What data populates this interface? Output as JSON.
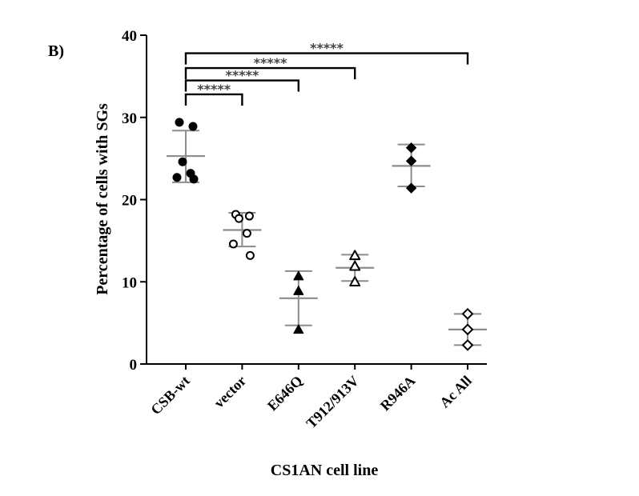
{
  "panel_label": "B)",
  "chart_data": {
    "type": "scatter",
    "title": "",
    "xlabel": "CS1AN cell line",
    "ylabel": "Percentage of cells with SGs",
    "ylim": [
      0,
      40
    ],
    "yticks": [
      0,
      10,
      20,
      30,
      40
    ],
    "categories": [
      "CSB-wt",
      "vector",
      "E646Q",
      "T912/913V",
      "R946A",
      "Ac All"
    ],
    "groups": [
      {
        "name": "CSB-wt",
        "marker": "circle-filled",
        "points": [
          29.4,
          28.9,
          24.6,
          23.2,
          22.7,
          22.5
        ],
        "mean": 25.3,
        "sd_low": 22.1,
        "sd_high": 28.4
      },
      {
        "name": "vector",
        "marker": "circle-open",
        "points": [
          18.2,
          18.0,
          17.7,
          15.9,
          14.6,
          13.2
        ],
        "mean": 16.3,
        "sd_low": 14.3,
        "sd_high": 18.4
      },
      {
        "name": "E646Q",
        "marker": "triangle-filled",
        "points": [
          10.7,
          8.9,
          4.2
        ],
        "mean": 8.0,
        "sd_low": 4.7,
        "sd_high": 11.3
      },
      {
        "name": "T912/913V",
        "marker": "triangle-open",
        "points": [
          13.2,
          11.9,
          10.0
        ],
        "mean": 11.7,
        "sd_low": 10.1,
        "sd_high": 13.3
      },
      {
        "name": "R946A",
        "marker": "diamond-filled",
        "points": [
          26.3,
          24.7,
          21.4
        ],
        "mean": 24.1,
        "sd_low": 21.6,
        "sd_high": 26.7
      },
      {
        "name": "Ac All",
        "marker": "diamond-open",
        "points": [
          6.1,
          4.2,
          2.3
        ],
        "mean": 4.2,
        "sd_low": 2.3,
        "sd_high": 6.1
      }
    ],
    "significance": [
      {
        "from": "CSB-wt",
        "to": "vector",
        "y": 32.8,
        "label": "*****"
      },
      {
        "from": "CSB-wt",
        "to": "E646Q",
        "y": 34.5,
        "label": "*****"
      },
      {
        "from": "CSB-wt",
        "to": "T912/913V",
        "y": 36.0,
        "label": "*****"
      },
      {
        "from": "CSB-wt",
        "to": "Ac All",
        "y": 37.8,
        "label": "*****"
      }
    ],
    "colors": {
      "points": "#000000",
      "error_bars": "#8c8c8c",
      "axes": "#000000"
    }
  }
}
